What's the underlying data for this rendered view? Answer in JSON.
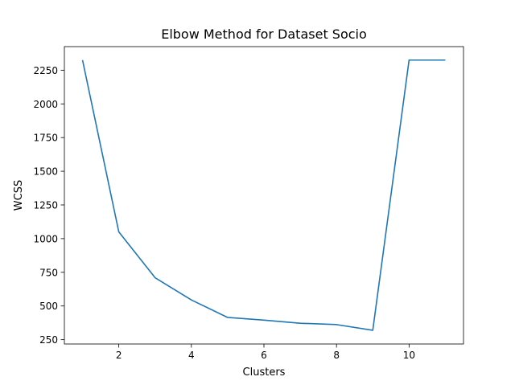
{
  "chart_data": {
    "type": "line",
    "title": "Elbow Method for Dataset Socio",
    "xlabel": "Clusters",
    "ylabel": "WCSS",
    "x": [
      1,
      2,
      3,
      4,
      5,
      6,
      7,
      8,
      9,
      10,
      11
    ],
    "series": [
      {
        "values": [
          2325,
          1050,
          710,
          545,
          415,
          395,
          372,
          362,
          320,
          2325,
          2325
        ]
      }
    ],
    "xlim": [
      0.5,
      11.5
    ],
    "ylim": [
      218,
      2425
    ],
    "xticks": [
      2,
      4,
      6,
      8,
      10
    ],
    "yticks": [
      250,
      500,
      750,
      1000,
      1250,
      1500,
      1750,
      2000,
      2250
    ],
    "grid": false,
    "legend": "none",
    "colors": {
      "line": "#1f77b4",
      "axes": "#000000",
      "background": "#ffffff"
    }
  }
}
